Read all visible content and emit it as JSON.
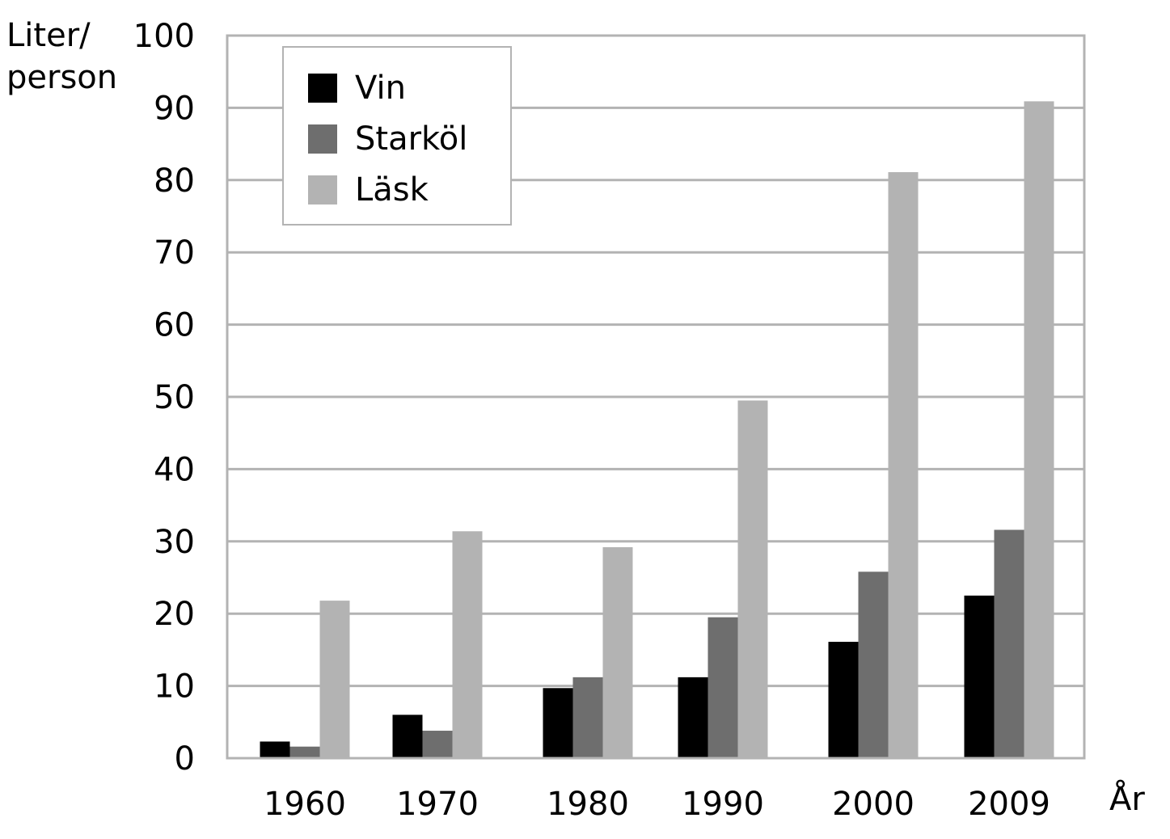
{
  "chart_data": {
    "type": "bar",
    "ylabel_lines": [
      "Liter/",
      "person"
    ],
    "xlabel": "År",
    "categories": [
      "1960",
      "1970",
      "1980",
      "1990",
      "2000",
      "2009"
    ],
    "ylim": [
      0,
      100
    ],
    "yticks": [
      0,
      10,
      20,
      30,
      40,
      50,
      60,
      70,
      80,
      90,
      100
    ],
    "grid": true,
    "legend_position": "top-left",
    "series": [
      {
        "name": "Vin",
        "color": "#000000",
        "values": [
          2.3,
          6.0,
          9.7,
          11.2,
          16.1,
          22.5
        ]
      },
      {
        "name": "Starköl",
        "color": "#6e6e6e",
        "values": [
          1.6,
          3.8,
          11.2,
          19.5,
          25.8,
          31.6
        ]
      },
      {
        "name": "Läsk",
        "color": "#b3b3b3",
        "values": [
          21.8,
          31.4,
          29.2,
          49.5,
          81.1,
          90.9
        ]
      }
    ]
  }
}
